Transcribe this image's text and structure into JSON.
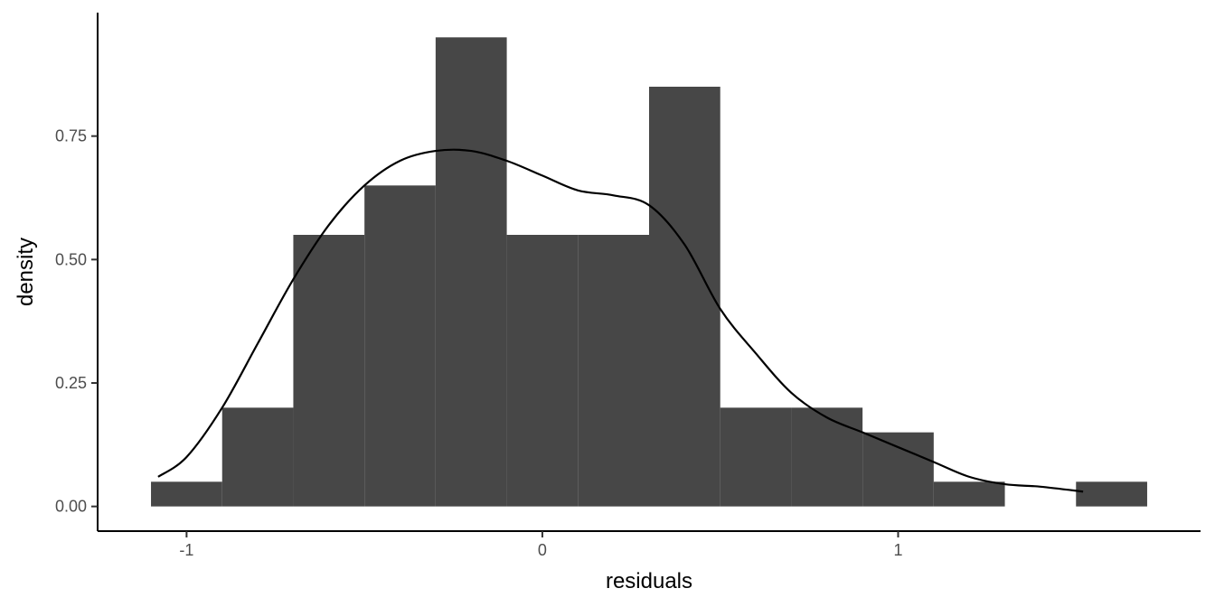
{
  "chart_data": {
    "type": "bar",
    "xlabel": "residuals",
    "ylabel": "density",
    "xlim": [
      -1.25,
      1.85
    ],
    "ylim": [
      -0.05,
      1.0
    ],
    "x_ticks": [
      {
        "value": -1,
        "label": "-1"
      },
      {
        "value": 0,
        "label": "0"
      },
      {
        "value": 1,
        "label": "1"
      }
    ],
    "y_ticks": [
      {
        "value": 0.0,
        "label": "0.00"
      },
      {
        "value": 0.25,
        "label": "0.25"
      },
      {
        "value": 0.5,
        "label": "0.50"
      },
      {
        "value": 0.75,
        "label": "0.75"
      }
    ],
    "histogram": {
      "bin_width": 0.2,
      "bin_starts": [
        -1.1,
        -0.9,
        -0.7,
        -0.5,
        -0.3,
        -0.1,
        0.1,
        0.3,
        0.5,
        0.7,
        0.9,
        1.1,
        1.3,
        1.5
      ],
      "density": [
        0.05,
        0.2,
        0.55,
        0.65,
        0.95,
        0.55,
        0.55,
        0.85,
        0.2,
        0.2,
        0.15,
        0.05,
        0.0,
        0.05
      ],
      "fill": "#474747"
    },
    "density_curve": {
      "x": [
        -1.08,
        -1.0,
        -0.9,
        -0.8,
        -0.7,
        -0.6,
        -0.5,
        -0.4,
        -0.3,
        -0.2,
        -0.1,
        0.0,
        0.1,
        0.2,
        0.3,
        0.4,
        0.5,
        0.6,
        0.7,
        0.8,
        0.9,
        1.0,
        1.1,
        1.2,
        1.3,
        1.4,
        1.52
      ],
      "y": [
        0.06,
        0.1,
        0.2,
        0.33,
        0.46,
        0.57,
        0.65,
        0.7,
        0.72,
        0.72,
        0.7,
        0.67,
        0.64,
        0.63,
        0.61,
        0.53,
        0.4,
        0.31,
        0.23,
        0.18,
        0.15,
        0.12,
        0.09,
        0.06,
        0.045,
        0.04,
        0.03
      ],
      "color": "#000000"
    },
    "grid": false,
    "legend": "none"
  }
}
